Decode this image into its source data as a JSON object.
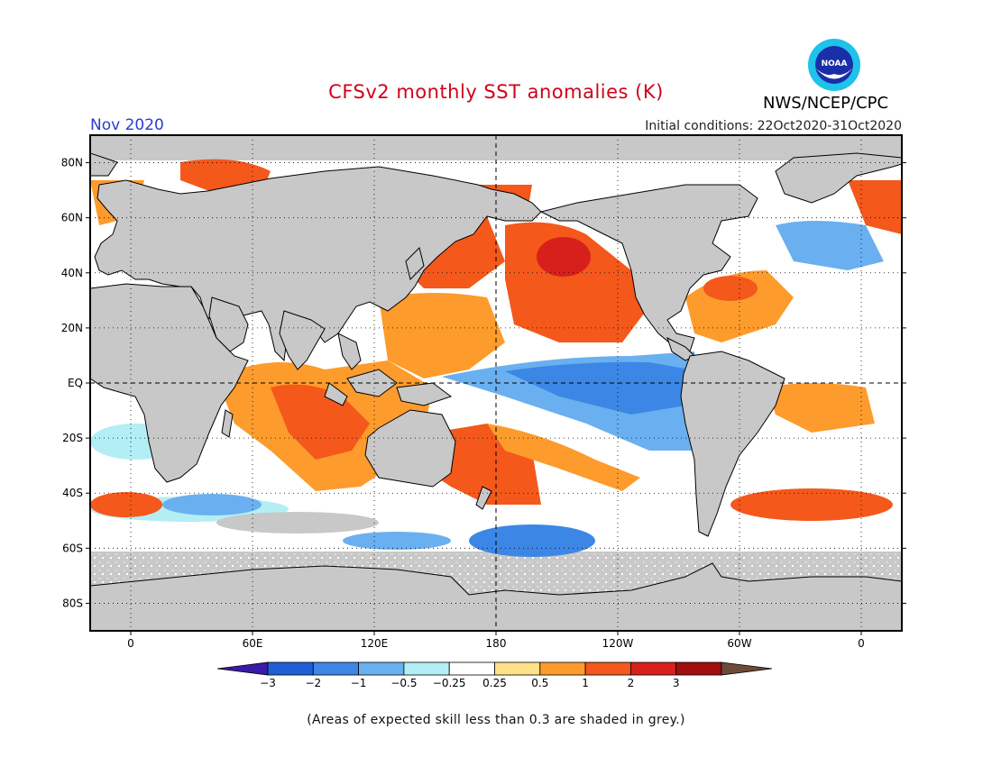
{
  "header": {
    "title": "CFSv2 monthly SST anomalies (K)",
    "agency": "NWS/NCEP/CPC",
    "month": "Nov 2020",
    "initial_conditions": "Initial conditions: 22Oct2020-31Oct2020",
    "logo_text": "NOAA"
  },
  "map": {
    "lat_labels": [
      "80N",
      "60N",
      "40N",
      "20N",
      "EQ",
      "20S",
      "40S",
      "60S",
      "80S"
    ],
    "lat_values": [
      80,
      60,
      40,
      20,
      0,
      -20,
      -40,
      -60,
      -80
    ],
    "lon_labels": [
      "0",
      "60E",
      "120E",
      "180",
      "120W",
      "60W",
      "0"
    ],
    "lon_values": [
      0,
      60,
      120,
      180,
      240,
      300,
      360
    ],
    "lon_range": [
      -20,
      380
    ],
    "lat_range": [
      -90,
      90
    ],
    "land_color": "#c8c8c8"
  },
  "colorbar": {
    "ticks": [
      "-3",
      "-2",
      "-1",
      "-0.5",
      "-0.25",
      "0.25",
      "0.5",
      "1",
      "2",
      "3"
    ],
    "colors": [
      "#3a1aa8",
      "#1e5fd6",
      "#3c87e6",
      "#6ab0f0",
      "#b3eef5",
      "#ffffff",
      "#fde28a",
      "#fd9b2c",
      "#f4581b",
      "#d7201b",
      "#a00e0e",
      "#6e4a3a"
    ]
  },
  "caption": "(Areas of expected skill less than 0.3 are shaded in grey.)"
}
